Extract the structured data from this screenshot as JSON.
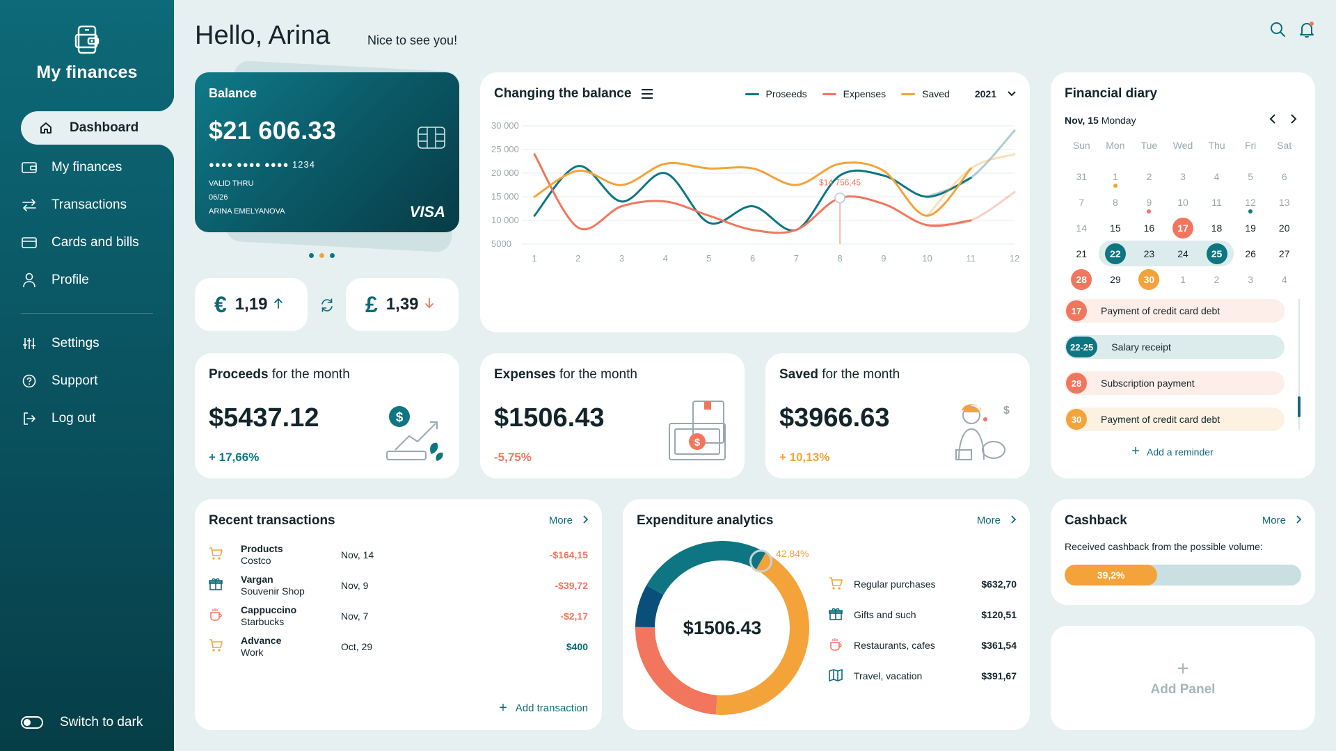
{
  "app": {
    "title": "My finances"
  },
  "sidebar": {
    "items": [
      {
        "label": "Dashboard",
        "icon": "home-icon"
      },
      {
        "label": "My finances",
        "icon": "wallet-icon"
      },
      {
        "label": "Transactions",
        "icon": "transfer-icon"
      },
      {
        "label": "Cards and bills",
        "icon": "card-icon"
      },
      {
        "label": "Profile",
        "icon": "user-icon"
      }
    ],
    "secondary": [
      {
        "label": "Settings",
        "icon": "sliders-icon"
      },
      {
        "label": "Support",
        "icon": "help-icon"
      },
      {
        "label": "Log out",
        "icon": "logout-icon"
      }
    ],
    "dark_toggle": "Switch to dark"
  },
  "header": {
    "greeting": "Hello, Arina",
    "subtitle": "Nice to see you!"
  },
  "balance": {
    "label": "Balance",
    "amount": "$21 606.33",
    "card_number": "●●●● ●●●● ●●●● 1234",
    "valid_label": "VALID THRU",
    "valid_date": "06/26",
    "holder": "ARINA EMELYANOVA",
    "brand": "VISA"
  },
  "rates": [
    {
      "symbol": "€",
      "value": "1,19",
      "trend": "up"
    },
    {
      "symbol": "£",
      "value": "1,39",
      "trend": "down"
    }
  ],
  "chart": {
    "title": "Changing the balance",
    "legend": [
      "Proseeds",
      "Expenses",
      "Saved"
    ],
    "year": "2021",
    "tooltip": "$14 756,45"
  },
  "chart_data": {
    "type": "line",
    "title": "Changing the balance",
    "x": [
      1,
      2,
      3,
      4,
      5,
      6,
      7,
      8,
      9,
      10,
      11,
      12
    ],
    "y_ticks": [
      "30 000",
      "25 000",
      "20 000",
      "15 000",
      "10 000",
      "5000"
    ],
    "ylim": [
      5000,
      30000
    ],
    "series": [
      {
        "name": "Proseeds",
        "color": "#0d7682",
        "values": [
          11000,
          21500,
          14000,
          20000,
          9500,
          13000,
          8000,
          19500,
          19500,
          15000,
          19000,
          29000
        ]
      },
      {
        "name": "Expenses",
        "color": "#f2765e",
        "values": [
          24000,
          8500,
          13000,
          14000,
          11000,
          8000,
          8000,
          14756,
          13500,
          9000,
          10000,
          16000
        ]
      },
      {
        "name": "Saved",
        "color": "#f3a33a",
        "values": [
          15000,
          20500,
          17500,
          22000,
          21000,
          21000,
          17500,
          22000,
          20500,
          11000,
          21000,
          24000
        ]
      }
    ],
    "highlight": {
      "x": 8,
      "label": "$14 756,45"
    }
  },
  "stats": [
    {
      "title_bold": "Proceeds",
      "title_rest": " for the month",
      "value": "$5437.12",
      "change": "+ 17,66%"
    },
    {
      "title_bold": "Expenses",
      "title_rest": " for the month",
      "value": "$1506.43",
      "change": "-5,75%"
    },
    {
      "title_bold": "Saved",
      "title_rest": " for the month",
      "value": "$3966.63",
      "change": "+ 10,13%"
    }
  ],
  "diary": {
    "title": "Financial diary",
    "date_bold": "Nov, 15",
    "date_day": "Monday",
    "weekdays": [
      "Sun",
      "Mon",
      "Tue",
      "Wed",
      "Thu",
      "Fri",
      "Sat"
    ],
    "days": [
      "31",
      "1",
      "2",
      "3",
      "4",
      "5",
      "6",
      "7",
      "8",
      "9",
      "10",
      "11",
      "12",
      "13",
      "14",
      "15",
      "16",
      "17",
      "18",
      "19",
      "20",
      "21",
      "22",
      "23",
      "24",
      "25",
      "26",
      "27",
      "28",
      "29",
      "30",
      "1",
      "2",
      "3",
      "4"
    ],
    "reminders": [
      {
        "badge": "17",
        "text": "Payment of credit card debt",
        "color": "#f2765e"
      },
      {
        "badge": "22-25",
        "text": "Salary receipt",
        "color": "#0d7682"
      },
      {
        "badge": "28",
        "text": "Subscription payment",
        "color": "#f2765e"
      },
      {
        "badge": "30",
        "text": "Payment of credit card debt",
        "color": "#f3a33a"
      }
    ],
    "add_label": "Add a reminder"
  },
  "recent": {
    "title": "Recent transactions",
    "more": "More",
    "items": [
      {
        "name": "Products",
        "place": "Costco",
        "date": "Nov, 14",
        "amount": "-$164,15",
        "icon": "cart-icon"
      },
      {
        "name": "Vargan",
        "place": "Souvenir Shop",
        "date": "Nov, 9",
        "amount": "-$39,72",
        "icon": "gift-icon"
      },
      {
        "name": "Cappuccino",
        "place": "Starbucks",
        "date": "Nov, 7",
        "amount": "-$2,17",
        "icon": "coffee-icon"
      },
      {
        "name": "Advance",
        "place": "Work",
        "date": "Oct, 29",
        "amount": "$400",
        "icon": "cart-icon"
      }
    ],
    "add_label": "Add transaction"
  },
  "analytics": {
    "title": "Expenditure analytics",
    "more": "More",
    "total": "$1506.43",
    "highlight_pct": "42,84%",
    "categories": [
      {
        "name": "Regular purchases",
        "value": "$632,70",
        "icon": "cart-icon"
      },
      {
        "name": "Gifts and such",
        "value": "$120,51",
        "icon": "gift-icon"
      },
      {
        "name": "Restaurants, cafes",
        "value": "$361,54",
        "icon": "coffee-icon"
      },
      {
        "name": "Travel, vacation",
        "value": "$391,67",
        "icon": "map-icon"
      }
    ],
    "donut_shares": [
      42.84,
      23.99,
      8.0,
      25.17
    ]
  },
  "cashback": {
    "title": "Cashback",
    "more": "More",
    "subtitle": "Received cashback from the possible volume:",
    "percent_label": "39,2%",
    "percent": 39.2
  },
  "add_panel": {
    "label": "Add Panel"
  },
  "colors": {
    "teal": "#0d7682",
    "coral": "#f2765e",
    "orange": "#f3a33a",
    "navy": "#0a4f7a"
  }
}
